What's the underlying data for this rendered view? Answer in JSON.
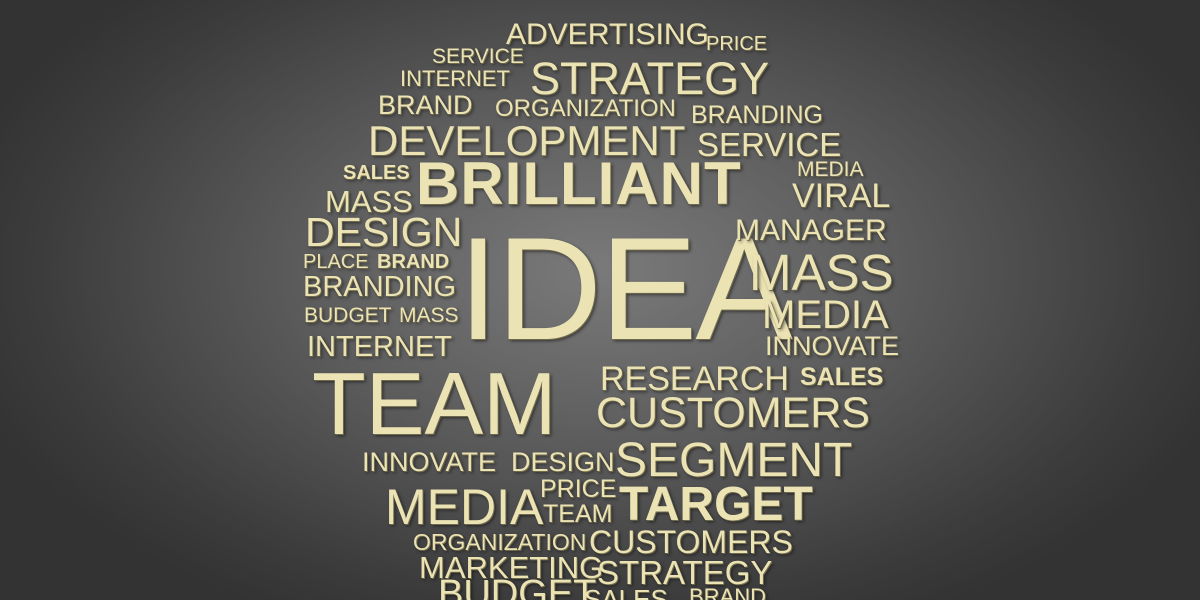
{
  "words": [
    {
      "text": "ADVERTISING"
    },
    {
      "text": "PRICE"
    },
    {
      "text": "SERVICE"
    },
    {
      "text": "INTERNET"
    },
    {
      "text": "STRATEGY"
    },
    {
      "text": "BRAND"
    },
    {
      "text": "ORGANIZATION"
    },
    {
      "text": "BRANDING"
    },
    {
      "text": "DEVELOPMENT"
    },
    {
      "text": "SERVICE"
    },
    {
      "text": "SALES"
    },
    {
      "text": "BRILLIANT"
    },
    {
      "text": "MEDIA"
    },
    {
      "text": "MASS"
    },
    {
      "text": "VIRAL"
    },
    {
      "text": "DESIGN"
    },
    {
      "text": "IDEA"
    },
    {
      "text": "MANAGER"
    },
    {
      "text": "PLACE"
    },
    {
      "text": "BRAND"
    },
    {
      "text": "MASS"
    },
    {
      "text": "BRANDING"
    },
    {
      "text": "BUDGET"
    },
    {
      "text": "MASS"
    },
    {
      "text": "MEDIA"
    },
    {
      "text": "INTERNET"
    },
    {
      "text": "INNOVATE"
    },
    {
      "text": "TEAM"
    },
    {
      "text": "RESEARCH"
    },
    {
      "text": "SALES"
    },
    {
      "text": "CUSTOMERS"
    },
    {
      "text": "INNOVATE"
    },
    {
      "text": "DESIGN"
    },
    {
      "text": "SEGMENT"
    },
    {
      "text": "MEDIA"
    },
    {
      "text": "PRICE"
    },
    {
      "text": "TARGET"
    },
    {
      "text": "TEAM"
    },
    {
      "text": "ORGANIZATION"
    },
    {
      "text": "CUSTOMERS"
    },
    {
      "text": "MARKETING"
    },
    {
      "text": "STRATEGY"
    },
    {
      "text": "BUDGET"
    },
    {
      "text": "SALES"
    },
    {
      "text": "BRAND"
    }
  ]
}
